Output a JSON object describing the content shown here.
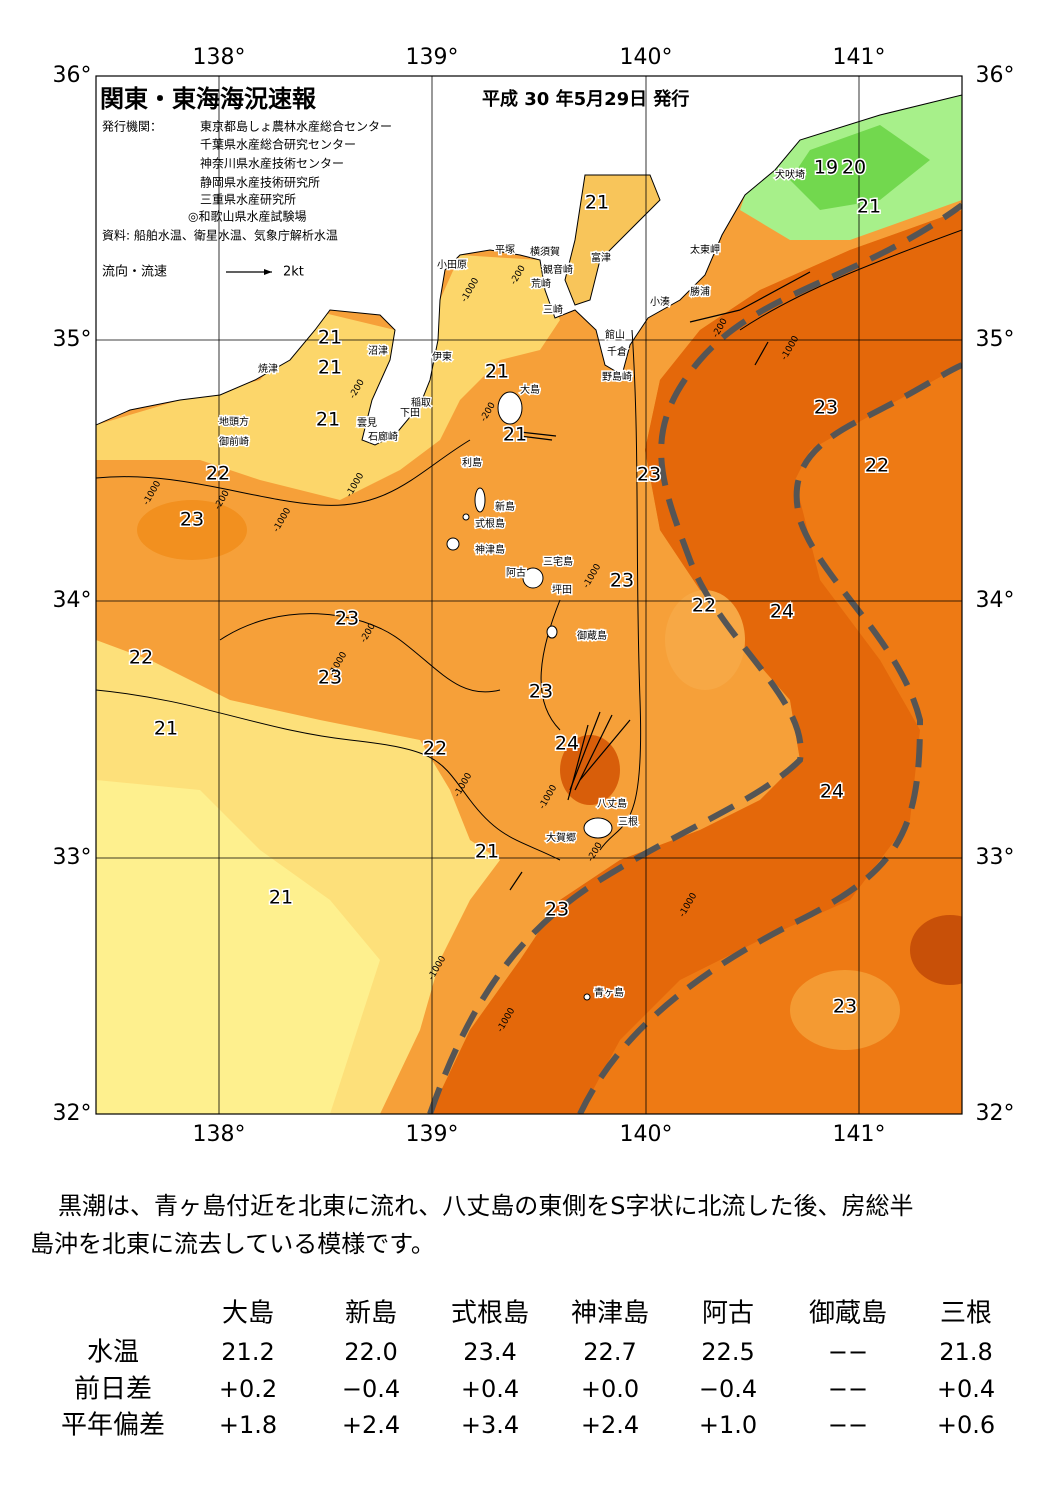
{
  "header": {
    "title": "関東・東海海況速報",
    "date": "平成 30 年5月29日 発行"
  },
  "publishers": {
    "label": "発行機関：",
    "names": [
      "東京都島しょ農林水産総合センター",
      "千葉県水産総合研究センター",
      "神奈川県水産技術センター",
      "静岡県水産技術研究所",
      "三重県水産研究所",
      "◎和歌山県水産試験場"
    ]
  },
  "source": "資料: 船舶水温、衛星水温、気象庁解析水温",
  "legend": {
    "label": "流向・流速",
    "speed": "2kt"
  },
  "axes": {
    "lon": [
      "138°",
      "139°",
      "140°",
      "141°"
    ],
    "lat": [
      "36°",
      "35°",
      "34°",
      "33°",
      "32°"
    ]
  },
  "places": [
    "犬吠埼",
    "太東岬",
    "勝浦",
    "小湊",
    "富津",
    "横須賀",
    "観音崎",
    "荒崎",
    "平塚",
    "小田原",
    "三崎",
    "館山",
    "千倉",
    "野島崎",
    "沼津",
    "伊東",
    "焼津",
    "稲取",
    "下田",
    "雲見",
    "石廊崎",
    "地頭方",
    "御前崎",
    "大島",
    "利島",
    "新島",
    "式根島",
    "神津島",
    "三宅島",
    "阿古",
    "坪田",
    "御蔵島",
    "八丈島",
    "三根",
    "大賀郷",
    "青ヶ島"
  ],
  "temperatures": [
    "19",
    "20",
    "21",
    "21",
    "21",
    "21",
    "21",
    "21",
    "21",
    "23",
    "22",
    "23",
    "22",
    "23",
    "23",
    "22",
    "24",
    "23",
    "22",
    "23",
    "23",
    "21",
    "22",
    "24",
    "24",
    "21",
    "21",
    "23",
    "23"
  ],
  "depths": [
    "-200",
    "-1000",
    "-200",
    "-200",
    "-1000",
    "-1000",
    "-200",
    "-1000",
    "-200",
    "-1000",
    "-1000",
    "-1000",
    "-1000",
    "-200",
    "-1000",
    "-1000",
    "-1000",
    "-200",
    "-1000"
  ],
  "summary": [
    "黒潮は、青ヶ島付近を北東に流れ、八丈島の東側をS字状に北流した後、房総半",
    "島沖を北東に流去している模様です。"
  ],
  "table": {
    "columns": [
      "大島",
      "新島",
      "式根島",
      "神津島",
      "阿古",
      "御蔵島",
      "三根"
    ],
    "rows": [
      {
        "label": "水温",
        "values": [
          "21.2",
          "22.0",
          "23.4",
          "22.7",
          "22.5",
          "−−",
          "21.8"
        ]
      },
      {
        "label": "前日差",
        "values": [
          "+0.2",
          "−0.4",
          "+0.4",
          "+0.0",
          "−0.4",
          "−−",
          "+0.4"
        ]
      },
      {
        "label": "平年偏差",
        "values": [
          "+1.8",
          "+2.4",
          "+3.4",
          "+2.4",
          "+1.0",
          "−−",
          "+0.6"
        ]
      }
    ]
  }
}
